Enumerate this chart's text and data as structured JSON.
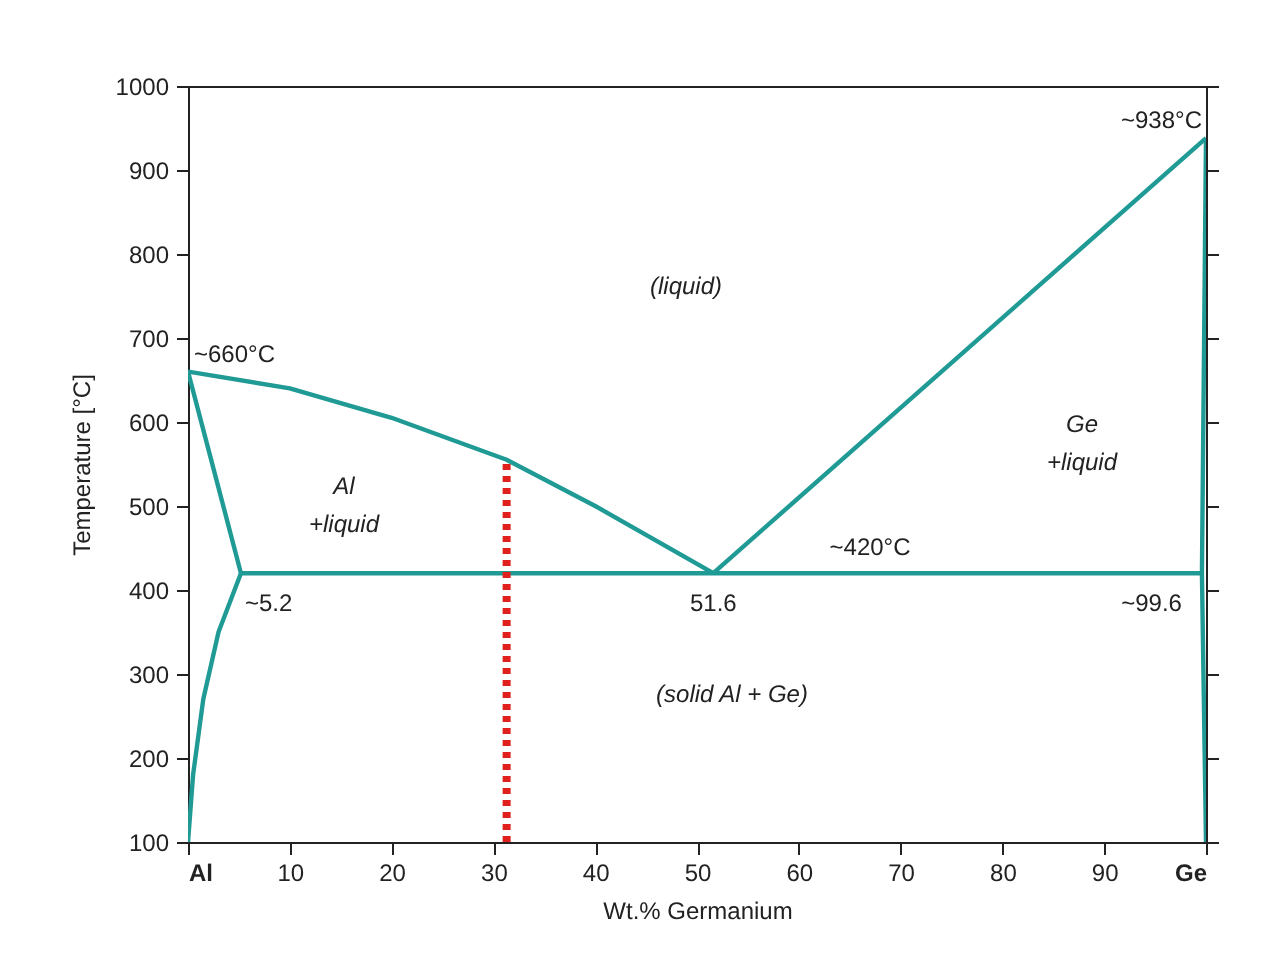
{
  "chart_data": {
    "type": "line",
    "xlabel": "Wt.% Germanium",
    "ylabel": "Temperature [°C]",
    "xlim": [
      0,
      100
    ],
    "ylim": [
      100,
      1000
    ],
    "xticks": [
      {
        "value": 0,
        "label": "Al"
      },
      10,
      20,
      30,
      40,
      50,
      60,
      70,
      80,
      90,
      {
        "value": 100,
        "label": "Ge"
      }
    ],
    "yticks": [
      100,
      200,
      300,
      400,
      500,
      600,
      700,
      800,
      900,
      1000
    ],
    "series": [
      {
        "color": "#1f9a94",
        "x": [
          0,
          10,
          20,
          31.3,
          40,
          51.6
        ],
        "values": [
          660,
          640,
          605,
          555,
          500,
          420
        ]
      },
      {
        "color": "#1f9a94",
        "x": [
          51.6,
          100
        ],
        "values": [
          420,
          938
        ]
      },
      {
        "color": "#1f9a94",
        "x": [
          0,
          5.2
        ],
        "values": [
          660,
          420
        ]
      },
      {
        "color": "#1f9a94",
        "x": [
          5.2,
          99.6
        ],
        "values": [
          420,
          420
        ]
      },
      {
        "color": "#1f9a94",
        "x": [
          5.2,
          3,
          1.5,
          0.5,
          0
        ],
        "values": [
          420,
          350,
          270,
          180,
          100
        ]
      },
      {
        "color": "#1f9a94",
        "x": [
          100,
          99.6,
          100
        ],
        "values": [
          938,
          420,
          100
        ]
      },
      {
        "color": "#e0201c",
        "line_style": "dotted",
        "x": [
          31.3,
          31.3
        ],
        "values": [
          100,
          555
        ]
      }
    ],
    "annotations": [
      {
        "text": "~660°C",
        "x": 0,
        "y": 660
      },
      {
        "text": "~938°C",
        "x": 100,
        "y": 938
      },
      {
        "text": "~420°C",
        "x": 67,
        "y": 420
      },
      {
        "text": "~5.2",
        "x": 5.2,
        "y": 420
      },
      {
        "text": "51.6",
        "x": 51.6,
        "y": 420
      },
      {
        "text": "~99.6",
        "x": 99.6,
        "y": 420
      },
      "(liquid)",
      "Al\n+liquid",
      "Ge\n+liquid",
      "(solid Al + Ge)"
    ]
  }
}
